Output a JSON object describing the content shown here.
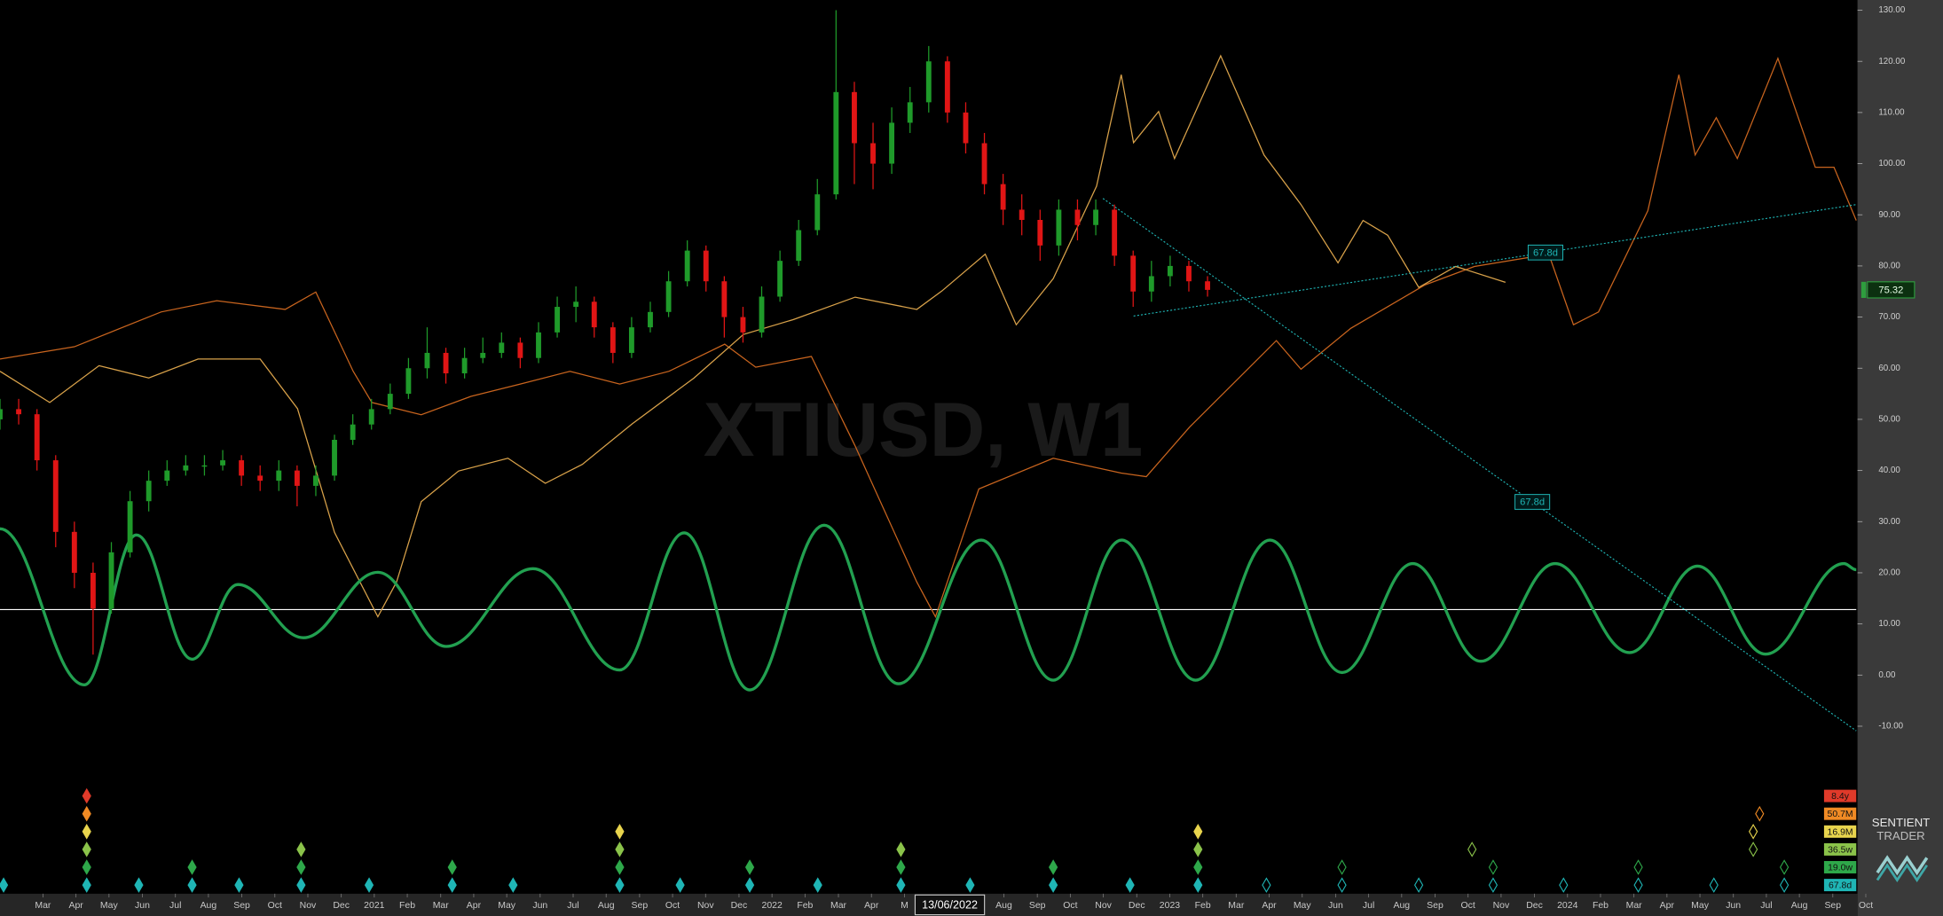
{
  "chart_data": {
    "type": "candlestick",
    "title": "XTIUSD, W1",
    "xlim": [
      2020.059,
      2024.726
    ],
    "ylim": [
      -20,
      132
    ],
    "yticks": [
      {
        "value": 130,
        "label": "130.00"
      },
      {
        "value": 120,
        "label": "120.00"
      },
      {
        "value": 110,
        "label": "110.00"
      },
      {
        "value": 100,
        "label": "100.00"
      },
      {
        "value": 90,
        "label": "90.00"
      },
      {
        "value": 80,
        "label": "80.00"
      },
      {
        "value": 70,
        "label": "70.00"
      },
      {
        "value": 60,
        "label": "60.00"
      },
      {
        "value": 50,
        "label": "50.00"
      },
      {
        "value": 40,
        "label": "40.00"
      },
      {
        "value": 30,
        "label": "30.00"
      },
      {
        "value": 20,
        "label": "20.00"
      },
      {
        "value": 10,
        "label": "10.00"
      },
      {
        "value": 0,
        "label": "0.00"
      },
      {
        "value": -10,
        "label": "-10.00"
      }
    ],
    "xticks": [
      {
        "value": 2020.167,
        "label": "Mar"
      },
      {
        "value": 2020.25,
        "label": "Apr"
      },
      {
        "value": 2020.333,
        "label": "May"
      },
      {
        "value": 2020.417,
        "label": "Jun"
      },
      {
        "value": 2020.5,
        "label": "Jul"
      },
      {
        "value": 2020.583,
        "label": "Aug"
      },
      {
        "value": 2020.667,
        "label": "Sep"
      },
      {
        "value": 2020.75,
        "label": "Oct"
      },
      {
        "value": 2020.833,
        "label": "Nov"
      },
      {
        "value": 2020.917,
        "label": "Dec"
      },
      {
        "value": 2021,
        "label": "2021"
      },
      {
        "value": 2021.083,
        "label": "Feb"
      },
      {
        "value": 2021.167,
        "label": "Mar"
      },
      {
        "value": 2021.25,
        "label": "Apr"
      },
      {
        "value": 2021.333,
        "label": "May"
      },
      {
        "value": 2021.417,
        "label": "Jun"
      },
      {
        "value": 2021.5,
        "label": "Jul"
      },
      {
        "value": 2021.583,
        "label": "Aug"
      },
      {
        "value": 2021.667,
        "label": "Sep"
      },
      {
        "value": 2021.75,
        "label": "Oct"
      },
      {
        "value": 2021.833,
        "label": "Nov"
      },
      {
        "value": 2021.917,
        "label": "Dec"
      },
      {
        "value": 2022,
        "label": "2022"
      },
      {
        "value": 2022.083,
        "label": "Feb"
      },
      {
        "value": 2022.167,
        "label": "Mar"
      },
      {
        "value": 2022.25,
        "label": "Apr"
      },
      {
        "value": 2022.333,
        "label": "M"
      },
      {
        "value": 2022.583,
        "label": "Aug"
      },
      {
        "value": 2022.667,
        "label": "Sep"
      },
      {
        "value": 2022.75,
        "label": "Oct"
      },
      {
        "value": 2022.833,
        "label": "Nov"
      },
      {
        "value": 2022.917,
        "label": "Dec"
      },
      {
        "value": 2023,
        "label": "2023"
      },
      {
        "value": 2023.083,
        "label": "Feb"
      },
      {
        "value": 2023.167,
        "label": "Mar"
      },
      {
        "value": 2023.25,
        "label": "Apr"
      },
      {
        "value": 2023.333,
        "label": "May"
      },
      {
        "value": 2023.417,
        "label": "Jun"
      },
      {
        "value": 2023.5,
        "label": "Jul"
      },
      {
        "value": 2023.583,
        "label": "Aug"
      },
      {
        "value": 2023.667,
        "label": "Sep"
      },
      {
        "value": 2023.75,
        "label": "Oct"
      },
      {
        "value": 2023.833,
        "label": "Nov"
      },
      {
        "value": 2023.917,
        "label": "Dec"
      },
      {
        "value": 2024,
        "label": "2024"
      },
      {
        "value": 2024.083,
        "label": "Feb"
      },
      {
        "value": 2024.167,
        "label": "Mar"
      },
      {
        "value": 2024.25,
        "label": "Apr"
      },
      {
        "value": 2024.333,
        "label": "May"
      },
      {
        "value": 2024.417,
        "label": "Jun"
      },
      {
        "value": 2024.5,
        "label": "Jul"
      },
      {
        "value": 2024.583,
        "label": "Aug"
      },
      {
        "value": 2024.667,
        "label": "Sep"
      },
      {
        "value": 2024.75,
        "label": "Oct"
      }
    ],
    "cursor_date": {
      "value": 2022.447,
      "label": "13/06/2022"
    },
    "candles": {
      "up_color": "#1f9a2a",
      "down_color": "#e01515",
      "x": [
        2020.059,
        2020.106,
        2020.152,
        2020.199,
        2020.246,
        2020.293,
        2020.339,
        2020.386,
        2020.433,
        2020.479,
        2020.526,
        2020.573,
        2020.619,
        2020.666,
        2020.713,
        2020.76,
        2020.806,
        2020.853,
        2020.9,
        2020.946,
        2020.993,
        2021.04,
        2021.086,
        2021.133,
        2021.18,
        2021.227,
        2021.273,
        2021.32,
        2021.367,
        2021.413,
        2021.46,
        2021.507,
        2021.553,
        2021.6,
        2021.647,
        2021.694,
        2021.74,
        2021.787,
        2021.834,
        2021.88,
        2021.927,
        2021.974,
        2022.02,
        2022.067,
        2022.114,
        2022.161,
        2022.207,
        2022.254,
        2022.301,
        2022.347,
        2022.394,
        2022.441,
        2022.487,
        2022.534,
        2022.581,
        2022.628,
        2022.674,
        2022.721,
        2022.768,
        2022.814,
        2022.861,
        2022.908,
        2022.954,
        2023.001,
        2023.048,
        2023.095
      ],
      "open": [
        50,
        52,
        51,
        42,
        28,
        20,
        13,
        24,
        34,
        38,
        40,
        41,
        41,
        42,
        39,
        38,
        40,
        37,
        39,
        46,
        49,
        52,
        55,
        60,
        63,
        59,
        62,
        63,
        65,
        62,
        67,
        72,
        73,
        68,
        63,
        68,
        71,
        77,
        83,
        77,
        70,
        67,
        74,
        81,
        87,
        94,
        114,
        104,
        100,
        108,
        112,
        120,
        110,
        104,
        96,
        91,
        89,
        84,
        91,
        88,
        91,
        82,
        75,
        78,
        80,
        77
      ],
      "high": [
        54,
        54,
        52,
        43,
        30,
        22,
        26,
        36,
        40,
        42,
        43,
        43,
        44,
        43,
        41,
        42,
        41,
        41,
        47,
        51,
        54,
        57,
        62,
        68,
        64,
        64,
        66,
        67,
        66,
        69,
        74,
        76,
        74,
        69,
        70,
        73,
        79,
        85,
        84,
        78,
        72,
        76,
        83,
        89,
        97,
        130,
        116,
        108,
        111,
        115,
        123,
        121,
        112,
        106,
        98,
        94,
        91,
        93,
        93,
        93,
        92,
        83,
        81,
        82,
        81,
        78
      ],
      "low": [
        48,
        49,
        40,
        25,
        17,
        4,
        12,
        23,
        32,
        37,
        39,
        39,
        40,
        37,
        36,
        36,
        33,
        35,
        38,
        45,
        48,
        51,
        54,
        58,
        57,
        58,
        61,
        62,
        60,
        61,
        66,
        69,
        66,
        61,
        62,
        67,
        70,
        76,
        75,
        66,
        65,
        66,
        73,
        80,
        86,
        93,
        96,
        95,
        98,
        106,
        110,
        108,
        102,
        94,
        88,
        86,
        81,
        82,
        85,
        86,
        80,
        72,
        73,
        76,
        75,
        74
      ],
      "close": [
        52,
        51,
        42,
        28,
        20,
        13,
        24,
        34,
        38,
        40,
        41,
        41,
        42,
        39,
        38,
        40,
        37,
        39,
        46,
        49,
        52,
        55,
        60,
        63,
        59,
        62,
        63,
        65,
        62,
        67,
        72,
        73,
        68,
        63,
        68,
        71,
        77,
        83,
        77,
        70,
        67,
        74,
        81,
        87,
        94,
        114,
        104,
        100,
        108,
        112,
        120,
        110,
        104,
        96,
        91,
        89,
        84,
        91,
        88,
        91,
        82,
        75,
        78,
        80,
        77,
        75.32
      ]
    },
    "last_price": {
      "value": 75.32,
      "color": "#2e9e3e"
    },
    "series": [
      {
        "color": "#c8641e",
        "smooth": false,
        "x": [
          2020.059,
          2020.246,
          2020.464,
          2020.604,
          2020.776,
          2020.853,
          2020.947,
          2020.994,
          2021.118,
          2021.243,
          2021.367,
          2021.492,
          2021.617,
          2021.741,
          2021.881,
          2021.959,
          2022.099,
          2022.209,
          2022.364,
          2022.411,
          2022.52,
          2022.707,
          2022.878,
          2022.941,
          2023.05,
          2023.268,
          2023.33,
          2023.455,
          2023.642,
          2023.766,
          2023.953,
          2024.015,
          2024.078,
          2024.202,
          2024.28,
          2024.321,
          2024.374,
          2024.427,
          2024.529,
          2024.623,
          2024.67,
          2024.726
        ],
        "values": [
          61.8,
          64.2,
          71.0,
          73.2,
          71.5,
          74.9,
          59.4,
          53.3,
          50.9,
          54.5,
          56.9,
          59.4,
          56.9,
          59.4,
          64.7,
          60.2,
          62.3,
          44.8,
          18.2,
          11.4,
          36.4,
          42.4,
          39.5,
          38.8,
          48.5,
          65.4,
          59.8,
          67.8,
          76.3,
          79.9,
          82.3,
          68.5,
          71.0,
          90.8,
          117.4,
          101.7,
          109.0,
          101.0,
          120.6,
          99.3,
          99.3,
          88.9
        ]
      },
      {
        "color": "#d9a24a",
        "smooth": false,
        "x": [
          2020.059,
          2020.184,
          2020.308,
          2020.433,
          2020.557,
          2020.713,
          2020.807,
          2020.9,
          2021.009,
          2021.056,
          2021.118,
          2021.212,
          2021.336,
          2021.43,
          2021.523,
          2021.648,
          2021.804,
          2021.928,
          2022.053,
          2022.209,
          2022.364,
          2022.427,
          2022.536,
          2022.614,
          2022.707,
          2022.816,
          2022.878,
          2022.909,
          2022.972,
          2023.012,
          2023.128,
          2023.237,
          2023.33,
          2023.423,
          2023.486,
          2023.548,
          2023.626,
          2023.719,
          2023.844
        ],
        "values": [
          59.4,
          53.3,
          60.5,
          58.1,
          61.8,
          61.8,
          52.1,
          27.9,
          11.4,
          18.2,
          33.9,
          39.9,
          42.4,
          37.5,
          41.2,
          49.1,
          58.1,
          66.6,
          69.5,
          73.9,
          71.5,
          75.1,
          82.3,
          68.5,
          77.5,
          95.6,
          117.4,
          104.1,
          110.2,
          101.0,
          121.1,
          101.7,
          92.0,
          80.6,
          88.9,
          86.0,
          75.8,
          79.9,
          76.8
        ]
      },
      {
        "color": "#22a050",
        "smooth": true,
        "x": [
          2020.059,
          2020.271,
          2020.402,
          2020.542,
          2020.657,
          2020.822,
          2021.009,
          2021.181,
          2021.399,
          2021.617,
          2021.779,
          2021.944,
          2022.131,
          2022.318,
          2022.526,
          2022.707,
          2022.879,
          2023.065,
          2023.252,
          2023.433,
          2023.611,
          2023.782,
          2023.969,
          2024.156,
          2024.327,
          2024.498,
          2024.695,
          2024.726
        ],
        "values": [
          28.6,
          -1.9,
          27.4,
          3.1,
          17.7,
          7.3,
          20.1,
          5.6,
          20.8,
          1.0,
          27.8,
          -2.9,
          29.3,
          -1.7,
          26.4,
          -1.0,
          26.4,
          -1.0,
          26.4,
          0.5,
          21.8,
          2.7,
          21.8,
          4.4,
          21.3,
          4.1,
          21.8,
          20.6
        ]
      }
    ],
    "hline": {
      "value": 12.8,
      "color": "#ffffff"
    },
    "trendlines": [
      {
        "color": "#1fb5b5",
        "x": [
          2022.832,
          2024.726
        ],
        "values": [
          93.2,
          -10.9
        ],
        "label": "67.8d"
      },
      {
        "color": "#1fb5b5",
        "x": [
          2022.909,
          2024.726
        ],
        "values": [
          70.2,
          92.0
        ],
        "label": "67.8d"
      }
    ],
    "cycles": [
      {
        "label": "8.4y",
        "color": "#e03a2a",
        "troughs": [
          2020.277
        ]
      },
      {
        "label": "50.7M",
        "color": "#f08a24",
        "troughs": [
          2020.277,
          2024.483
        ]
      },
      {
        "label": "16.9M",
        "color": "#e8d44d",
        "troughs": [
          2020.277,
          2021.617,
          2023.071,
          2024.467
        ]
      },
      {
        "label": "36.5w",
        "color": "#8bc34a",
        "troughs": [
          2020.277,
          2020.816,
          2021.617,
          2022.324,
          2023.071,
          2023.76,
          2024.467
        ]
      },
      {
        "label": "19.0w",
        "color": "#2ea84a",
        "troughs": [
          2020.277,
          2020.542,
          2020.816,
          2021.196,
          2021.617,
          2021.944,
          2022.324,
          2022.707,
          2023.071,
          2023.433,
          2023.813,
          2024.178,
          2024.545
        ]
      },
      {
        "label": "67.8d",
        "color": "#1fb5b5",
        "troughs": [
          2020.068,
          2020.277,
          2020.408,
          2020.542,
          2020.66,
          2020.816,
          2020.987,
          2021.196,
          2021.349,
          2021.617,
          2021.769,
          2021.944,
          2022.115,
          2022.324,
          2022.498,
          2022.707,
          2022.9,
          2023.071,
          2023.243,
          2023.433,
          2023.626,
          2023.813,
          2023.99,
          2024.178,
          2024.368,
          2024.545
        ]
      }
    ],
    "logo": [
      "SENTIENT",
      "TRADER"
    ]
  }
}
